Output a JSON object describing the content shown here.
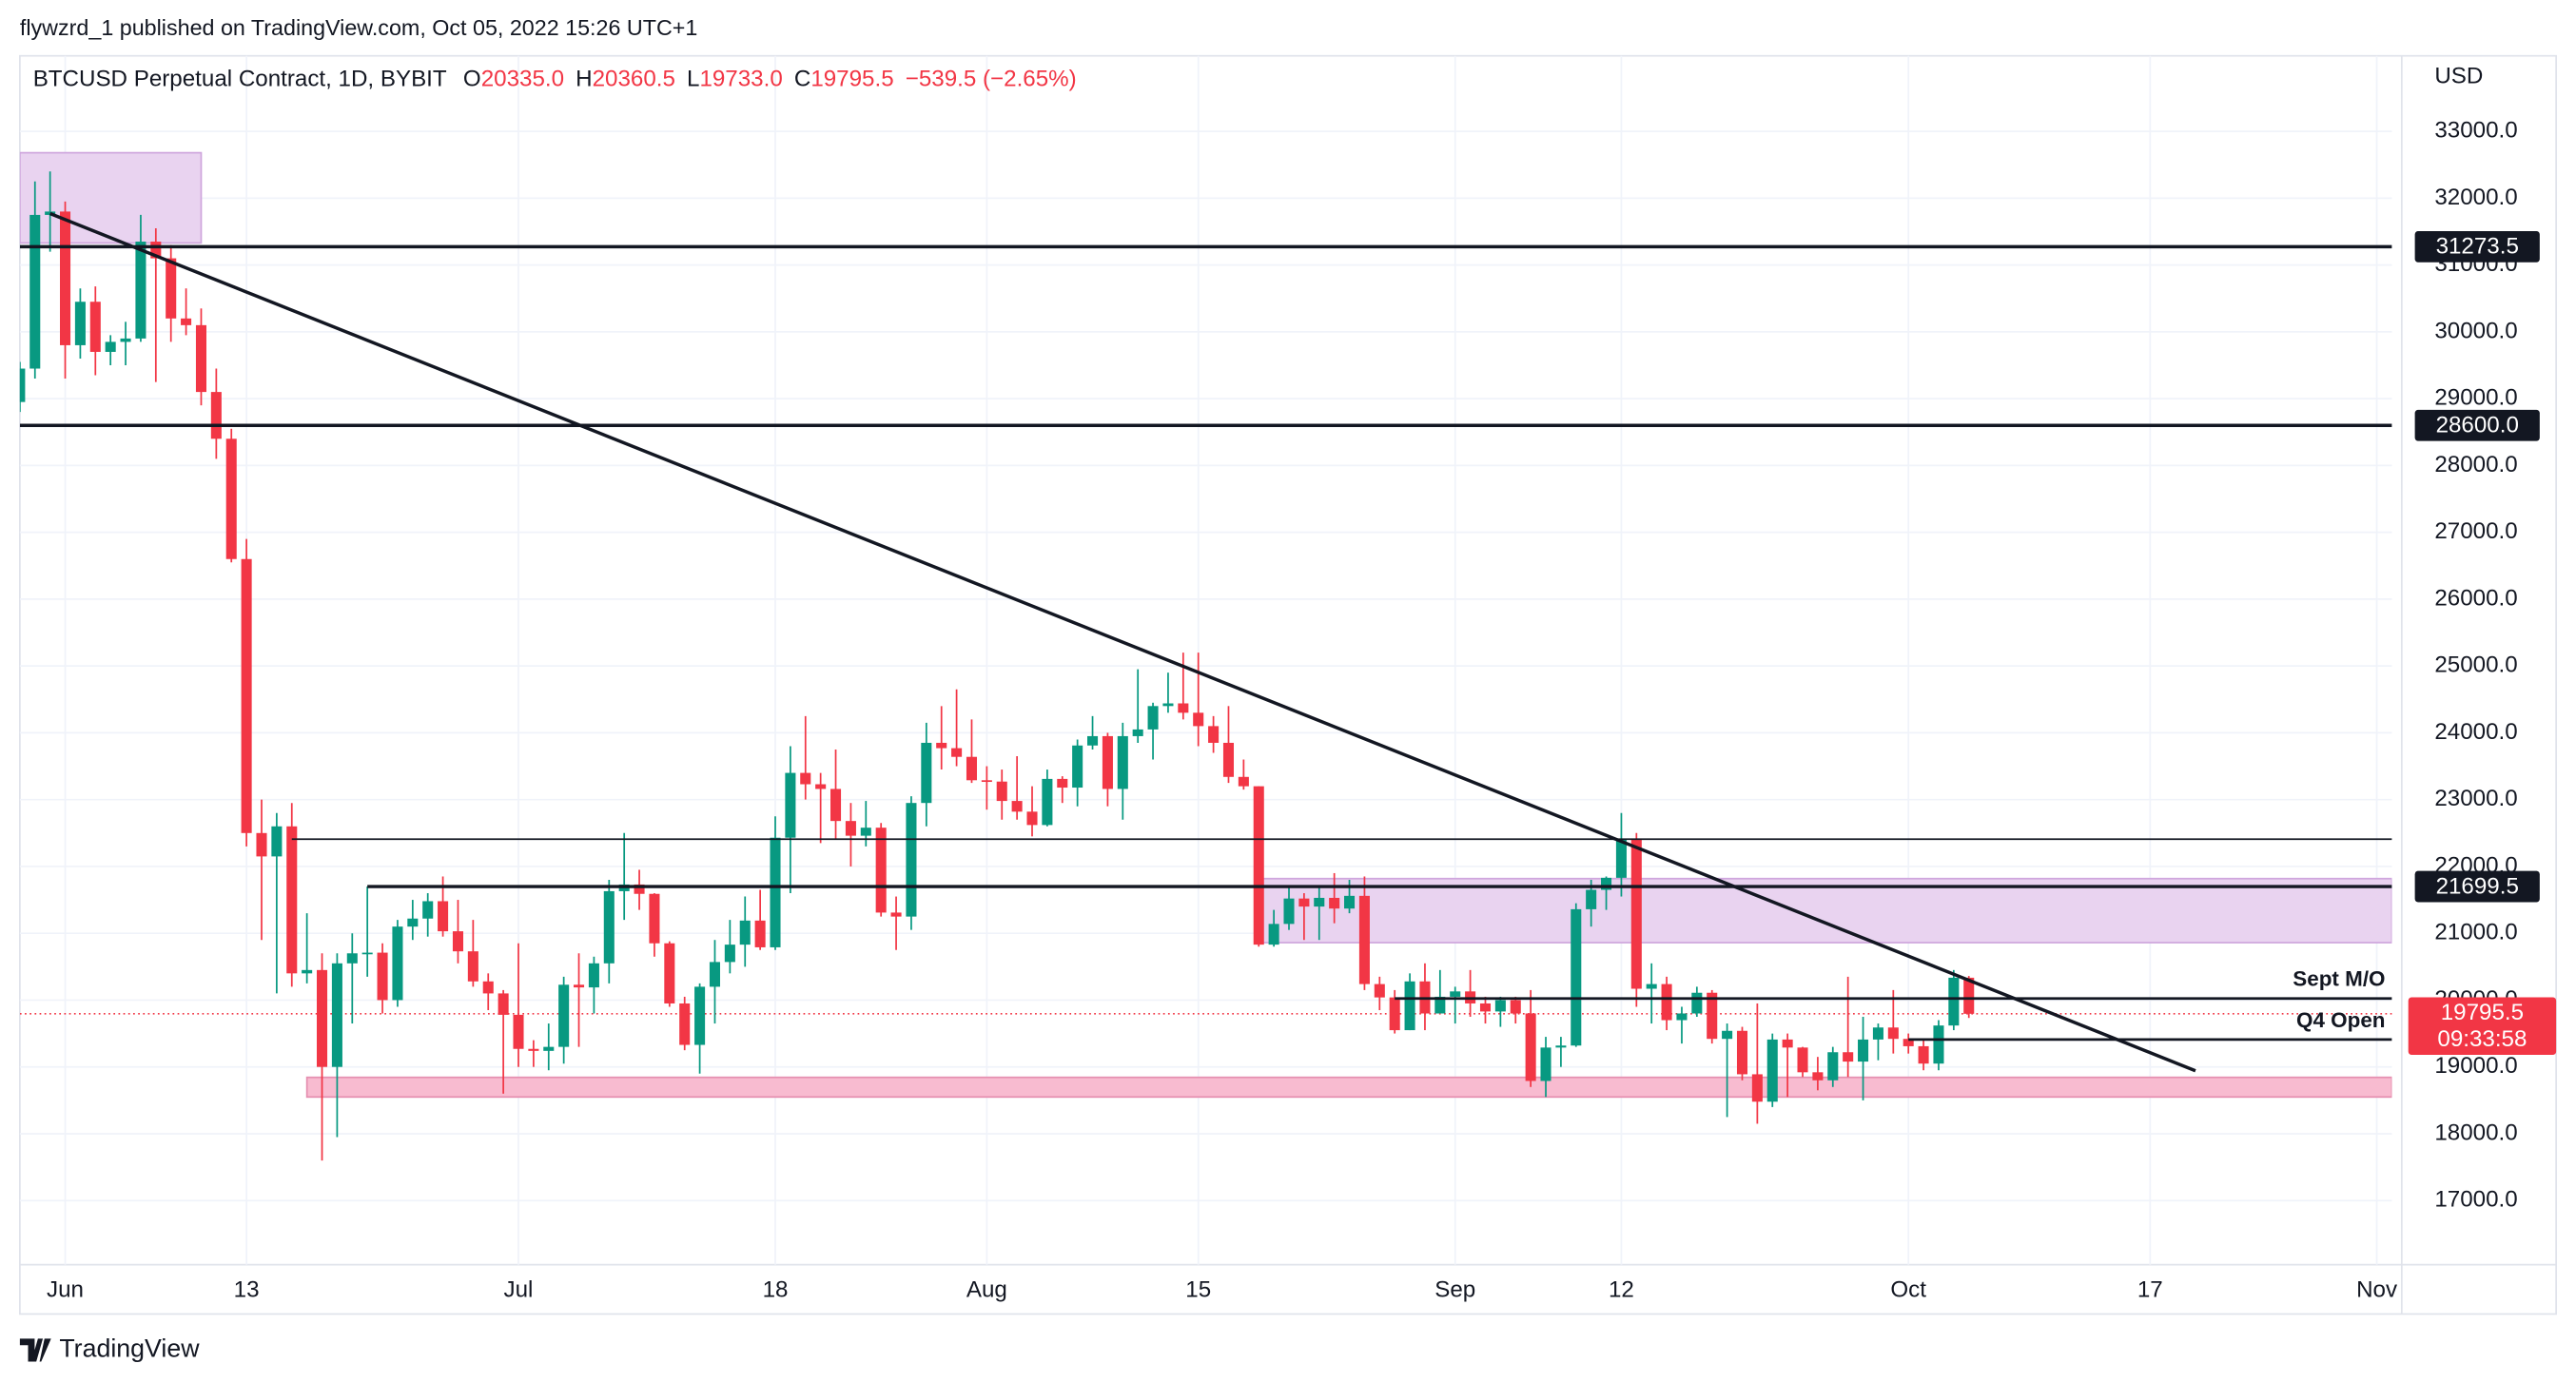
{
  "chart_data": {
    "type": "candlestick",
    "header": "flywzrd_1 published on TradingView.com, Oct 05, 2022 15:26 UTC+1",
    "legend": {
      "symbol": "BTCUSD Perpetual Contract, 1D, BYBIT",
      "fields": [
        {
          "key": "O",
          "value": "20335.0"
        },
        {
          "key": "H",
          "value": "20360.5"
        },
        {
          "key": "L",
          "value": "19733.0"
        },
        {
          "key": "C",
          "value": "19795.5"
        }
      ],
      "change": "−539.5 (−2.65%)"
    },
    "currency": "USD",
    "branding": "TradingView",
    "up_color": "#089981",
    "down_color": "#f23645",
    "x": [
      "05-29",
      "05-30",
      "05-31",
      "06-01",
      "06-02",
      "06-03",
      "06-04",
      "06-05",
      "06-06",
      "06-07",
      "06-08",
      "06-09",
      "06-10",
      "06-11",
      "06-12",
      "06-13",
      "06-14",
      "06-15",
      "06-16",
      "06-17",
      "06-18",
      "06-19",
      "06-20",
      "06-21",
      "06-22",
      "06-23",
      "06-24",
      "06-25",
      "06-26",
      "06-27",
      "06-28",
      "06-29",
      "06-30",
      "07-01",
      "07-02",
      "07-03",
      "07-04",
      "07-05",
      "07-06",
      "07-07",
      "07-08",
      "07-09",
      "07-10",
      "07-11",
      "07-12",
      "07-13",
      "07-14",
      "07-15",
      "07-16",
      "07-17",
      "07-18",
      "07-19",
      "07-20",
      "07-21",
      "07-22",
      "07-23",
      "07-24",
      "07-25",
      "07-26",
      "07-27",
      "07-28",
      "07-29",
      "07-30",
      "07-31",
      "08-01",
      "08-02",
      "08-03",
      "08-04",
      "08-05",
      "08-06",
      "08-07",
      "08-08",
      "08-09",
      "08-10",
      "08-11",
      "08-12",
      "08-13",
      "08-14",
      "08-15",
      "08-16",
      "08-17",
      "08-18",
      "08-19",
      "08-20",
      "08-21",
      "08-22",
      "08-23",
      "08-24",
      "08-25",
      "08-26",
      "08-27",
      "08-28",
      "08-29",
      "08-30",
      "08-31",
      "09-01",
      "09-02",
      "09-03",
      "09-04",
      "09-05",
      "09-06",
      "09-07",
      "09-08",
      "09-09",
      "09-10",
      "09-11",
      "09-12",
      "09-13",
      "09-14",
      "09-15",
      "09-16",
      "09-17",
      "09-18",
      "09-19",
      "09-20",
      "09-21",
      "09-22",
      "09-23",
      "09-24",
      "09-25",
      "09-26",
      "09-27",
      "09-28",
      "09-29",
      "09-30",
      "10-01",
      "10-02",
      "10-03",
      "10-04",
      "10-05"
    ],
    "open": [
      28950,
      29450,
      31750,
      31800,
      29800,
      30450,
      29700,
      29850,
      29900,
      31350,
      31100,
      30200,
      30100,
      29100,
      28400,
      26600,
      22500,
      22150,
      22600,
      20400,
      20450,
      19000,
      20550,
      20700,
      20710,
      20000,
      21100,
      21220,
      21480,
      21030,
      20730,
      20280,
      20100,
      19780,
      19270,
      19240,
      19300,
      20230,
      20190,
      20550,
      21630,
      21730,
      21590,
      20850,
      19950,
      19330,
      20200,
      20570,
      20830,
      21190,
      20790,
      22430,
      23400,
      23230,
      23160,
      22680,
      22460,
      22580,
      21310,
      21250,
      22950,
      23850,
      23770,
      23640,
      23290,
      23270,
      22980,
      22820,
      22620,
      23310,
      23180,
      23810,
      23950,
      23160,
      23950,
      24050,
      24400,
      24440,
      24300,
      24100,
      23850,
      23340,
      23200,
      20830,
      21140,
      21520,
      21400,
      21530,
      21370,
      21560,
      20240,
      20040,
      19550,
      20280,
      19800,
      20050,
      20130,
      19950,
      19830,
      20000,
      19800,
      18790,
      19290,
      19320,
      21360,
      21650,
      21830,
      22400,
      20170,
      20240,
      19700,
      19800,
      20110,
      19420,
      19540,
      18890,
      18480,
      19410,
      19290,
      18920,
      18800,
      19220,
      19080,
      19410,
      19590,
      19420,
      19310,
      19050,
      19620,
      20335
    ],
    "high": [
      29550,
      32250,
      32400,
      31950,
      30650,
      30680,
      29950,
      30150,
      31750,
      31550,
      31300,
      30650,
      30350,
      29450,
      28550,
      26900,
      23000,
      22800,
      22950,
      21300,
      20700,
      20700,
      21000,
      21700,
      20850,
      21200,
      21500,
      21600,
      21850,
      21500,
      21200,
      20400,
      20150,
      20850,
      19400,
      19650,
      20350,
      20700,
      20650,
      21800,
      22500,
      21950,
      21600,
      20880,
      20050,
      20250,
      20900,
      21200,
      21550,
      21650,
      22750,
      23800,
      24250,
      23400,
      23750,
      22950,
      22980,
      22650,
      21550,
      23050,
      24150,
      24400,
      24650,
      24200,
      23500,
      23450,
      23650,
      23200,
      23450,
      23350,
      23900,
      24250,
      24000,
      24150,
      24950,
      24450,
      24900,
      25200,
      25200,
      24250,
      24400,
      23600,
      23200,
      21350,
      21700,
      21600,
      21700,
      21900,
      21800,
      21850,
      20350,
      20150,
      20400,
      20550,
      20450,
      20200,
      20450,
      20050,
      20050,
      20050,
      20150,
      19450,
      19450,
      21450,
      21800,
      21850,
      22800,
      22500,
      20550,
      20350,
      19900,
      20200,
      20150,
      19650,
      19600,
      19950,
      19500,
      19500,
      19300,
      19150,
      19300,
      20350,
      19750,
      19650,
      20150,
      19500,
      19400,
      19700,
      20450,
      20360.5
    ],
    "low": [
      28800,
      29300,
      31200,
      29300,
      29600,
      29350,
      29500,
      29500,
      29850,
      29250,
      29850,
      29950,
      28900,
      28100,
      26550,
      22300,
      20900,
      20100,
      20200,
      20250,
      17600,
      17950,
      19650,
      20350,
      19800,
      19900,
      20900,
      20950,
      20950,
      20550,
      20200,
      19850,
      18600,
      19000,
      19000,
      18950,
      19050,
      19300,
      19800,
      20250,
      21200,
      21350,
      20650,
      19900,
      19250,
      18900,
      19650,
      20400,
      20500,
      20750,
      20750,
      21600,
      23000,
      22350,
      22400,
      22000,
      22300,
      21250,
      20750,
      21050,
      22600,
      23450,
      23500,
      23250,
      22850,
      22700,
      22700,
      22450,
      22600,
      22950,
      22900,
      23750,
      22900,
      22700,
      23850,
      23600,
      24300,
      24200,
      23800,
      23700,
      23250,
      23150,
      20800,
      20800,
      21050,
      20900,
      20900,
      21150,
      21300,
      20150,
      19850,
      19500,
      19550,
      19550,
      19800,
      19650,
      19750,
      19650,
      19600,
      19650,
      18700,
      18550,
      19000,
      19300,
      21100,
      21350,
      21550,
      19900,
      19650,
      19550,
      19350,
      19750,
      19350,
      18250,
      18800,
      18150,
      18400,
      18550,
      18850,
      18650,
      18700,
      18850,
      18500,
      19100,
      19200,
      19200,
      18950,
      18950,
      19550,
      19733
    ],
    "close": [
      29450,
      31750,
      31800,
      29800,
      30450,
      29700,
      29850,
      29900,
      31350,
      31100,
      30200,
      30100,
      29100,
      28400,
      26600,
      22500,
      22150,
      22600,
      20400,
      20450,
      19000,
      20550,
      20700,
      20710,
      20000,
      21100,
      21220,
      21480,
      21030,
      20730,
      20280,
      20100,
      19780,
      19270,
      19240,
      19300,
      20230,
      20190,
      20550,
      21630,
      21730,
      21590,
      20850,
      19950,
      19330,
      20200,
      20570,
      20830,
      21190,
      20790,
      22430,
      23400,
      23230,
      23160,
      22680,
      22460,
      22580,
      21310,
      21250,
      22950,
      23850,
      23770,
      23640,
      23290,
      23270,
      22980,
      22820,
      22620,
      23310,
      23180,
      23810,
      23950,
      23160,
      23950,
      24050,
      24400,
      24440,
      24300,
      24100,
      23850,
      23340,
      23200,
      20830,
      21140,
      21520,
      21400,
      21530,
      21370,
      21560,
      20240,
      20040,
      19550,
      20280,
      19800,
      20050,
      20130,
      19950,
      19830,
      20000,
      19800,
      18790,
      19290,
      19320,
      21360,
      21650,
      21830,
      22400,
      20170,
      20240,
      19700,
      19800,
      20110,
      19420,
      19540,
      18890,
      18480,
      19410,
      19290,
      18920,
      18800,
      19220,
      19080,
      19410,
      19590,
      19420,
      19310,
      19050,
      19620,
      20335,
      19795.5
    ],
    "xlim": [
      "05-29",
      "11-02"
    ],
    "xticks": [
      {
        "value": "06-01",
        "label": "Jun"
      },
      {
        "value": "06-13",
        "label": "13"
      },
      {
        "value": "07-01",
        "label": "Jul"
      },
      {
        "value": "07-18",
        "label": "18"
      },
      {
        "value": "08-01",
        "label": "Aug"
      },
      {
        "value": "08-15",
        "label": "15"
      },
      {
        "value": "09-01",
        "label": "Sep"
      },
      {
        "value": "09-12",
        "label": "12"
      },
      {
        "value": "10-01",
        "label": "Oct"
      },
      {
        "value": "10-17",
        "label": "17"
      },
      {
        "value": "11-01",
        "label": "Nov"
      }
    ],
    "ylim": [
      16040,
      34130
    ],
    "yticks": [
      {
        "value": 17000,
        "label": "17000.0"
      },
      {
        "value": 18000,
        "label": "18000.0"
      },
      {
        "value": 19000,
        "label": "19000.0"
      },
      {
        "value": 20000,
        "label": "20000.0"
      },
      {
        "value": 21000,
        "label": "21000.0"
      },
      {
        "value": 22000,
        "label": "22000.0"
      },
      {
        "value": 23000,
        "label": "23000.0"
      },
      {
        "value": 24000,
        "label": "24000.0"
      },
      {
        "value": 25000,
        "label": "25000.0"
      },
      {
        "value": 26000,
        "label": "26000.0"
      },
      {
        "value": 27000,
        "label": "27000.0"
      },
      {
        "value": 28000,
        "label": "28000.0"
      },
      {
        "value": 29000,
        "label": "29000.0"
      },
      {
        "value": 30000,
        "label": "30000.0"
      },
      {
        "value": 31000,
        "label": "31000.0"
      },
      {
        "value": 32000,
        "label": "32000.0"
      },
      {
        "value": 33000,
        "label": "33000.0"
      }
    ],
    "grid": true,
    "zones": [
      {
        "from": "05-29",
        "to": "06-10",
        "top": 32680,
        "bottom": 31330,
        "fill": "#e9d3f0",
        "stroke": "#cfa6dd"
      },
      {
        "from": "08-19",
        "to": "11-02",
        "top": 21818,
        "bottom": 20860,
        "fill": "#e9d3f0",
        "stroke": "#cfa6dd"
      },
      {
        "from": "06-17",
        "to": "11-02",
        "top": 18844,
        "bottom": 18550,
        "fill": "#f8bbd0",
        "stroke": "#e58fb0"
      }
    ],
    "hlines": [
      {
        "price": 31273.5,
        "tag": "31273.5",
        "from": "05-29",
        "width": 2
      },
      {
        "price": 28600,
        "tag": "28600.0",
        "from": "05-29",
        "width": 2
      },
      {
        "price": 22408,
        "from": "06-16",
        "width": 1
      },
      {
        "price": 21699.5,
        "tag": "21699.5",
        "from": "06-21",
        "width": 2
      },
      {
        "price": 20024,
        "text": "Sept M/O",
        "from": "08-28",
        "width": 1.6
      },
      {
        "price": 19410,
        "text": "Q4 Open",
        "from": "10-01",
        "width": 1.6
      }
    ],
    "trendline": {
      "from": "05-31",
      "from_price": 31770,
      "to": "10-20",
      "to_price": 18942
    },
    "last_price": {
      "value": 19795.5,
      "label": "19795.5",
      "countdown": "09:33:58",
      "color": "#f23645"
    }
  }
}
